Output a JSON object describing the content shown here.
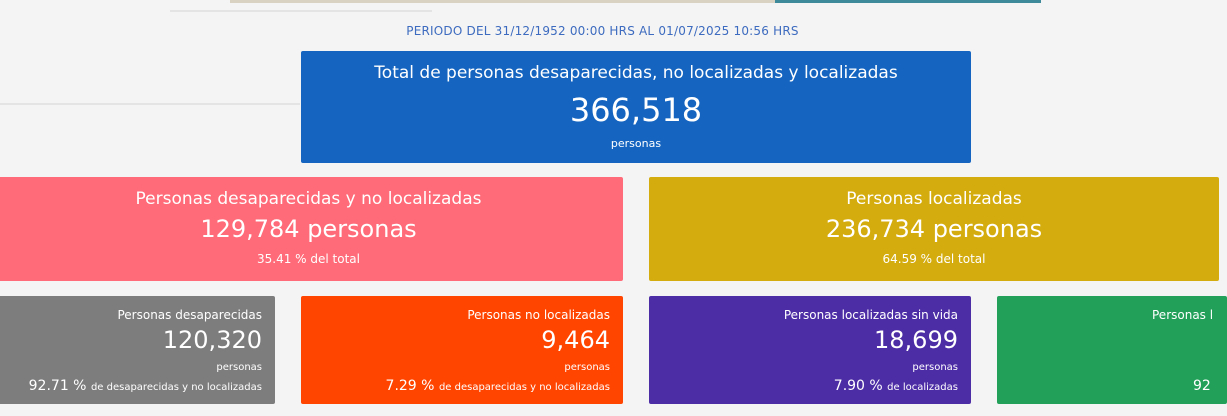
{
  "header": {
    "period": "PERIODO DEL 31/12/1952 00:00 HRS AL 01/07/2025 10:56 HRS"
  },
  "total": {
    "title": "Total de personas desaparecidas, no localizadas y localizadas",
    "value": "366,518",
    "unit": "personas",
    "color": "#1565c0"
  },
  "missing_not_located": {
    "title": "Personas desaparecidas y no localizadas",
    "value": "129,784 personas",
    "percent": "35.41 %",
    "percent_suffix": "del total",
    "color": "#ff6b78"
  },
  "located": {
    "title": "Personas localizadas",
    "value": "236,734 personas",
    "percent": "64.59 %",
    "percent_suffix": "del total",
    "color": "#d4ac0d"
  },
  "details": [
    {
      "title": "Personas desaparecidas",
      "value": "120,320",
      "unit": "personas",
      "percent": "92.71 %",
      "percent_suffix": "de desaparecidas y no localizadas",
      "color": "#7d7d7d"
    },
    {
      "title": "Personas no localizadas",
      "value": "9,464",
      "unit": "personas",
      "percent": "7.29 %",
      "percent_suffix": "de desaparecidas y no localizadas",
      "color": "#ff4500"
    },
    {
      "title": "Personas localizadas sin vida",
      "value": "18,699",
      "unit": "personas",
      "percent": "7.90 %",
      "percent_suffix": "de localizadas",
      "color": "#4d2da6"
    },
    {
      "title": "Personas l",
      "value": "",
      "unit": "",
      "percent": "92",
      "percent_suffix": "",
      "color": "#22a05a"
    }
  ]
}
